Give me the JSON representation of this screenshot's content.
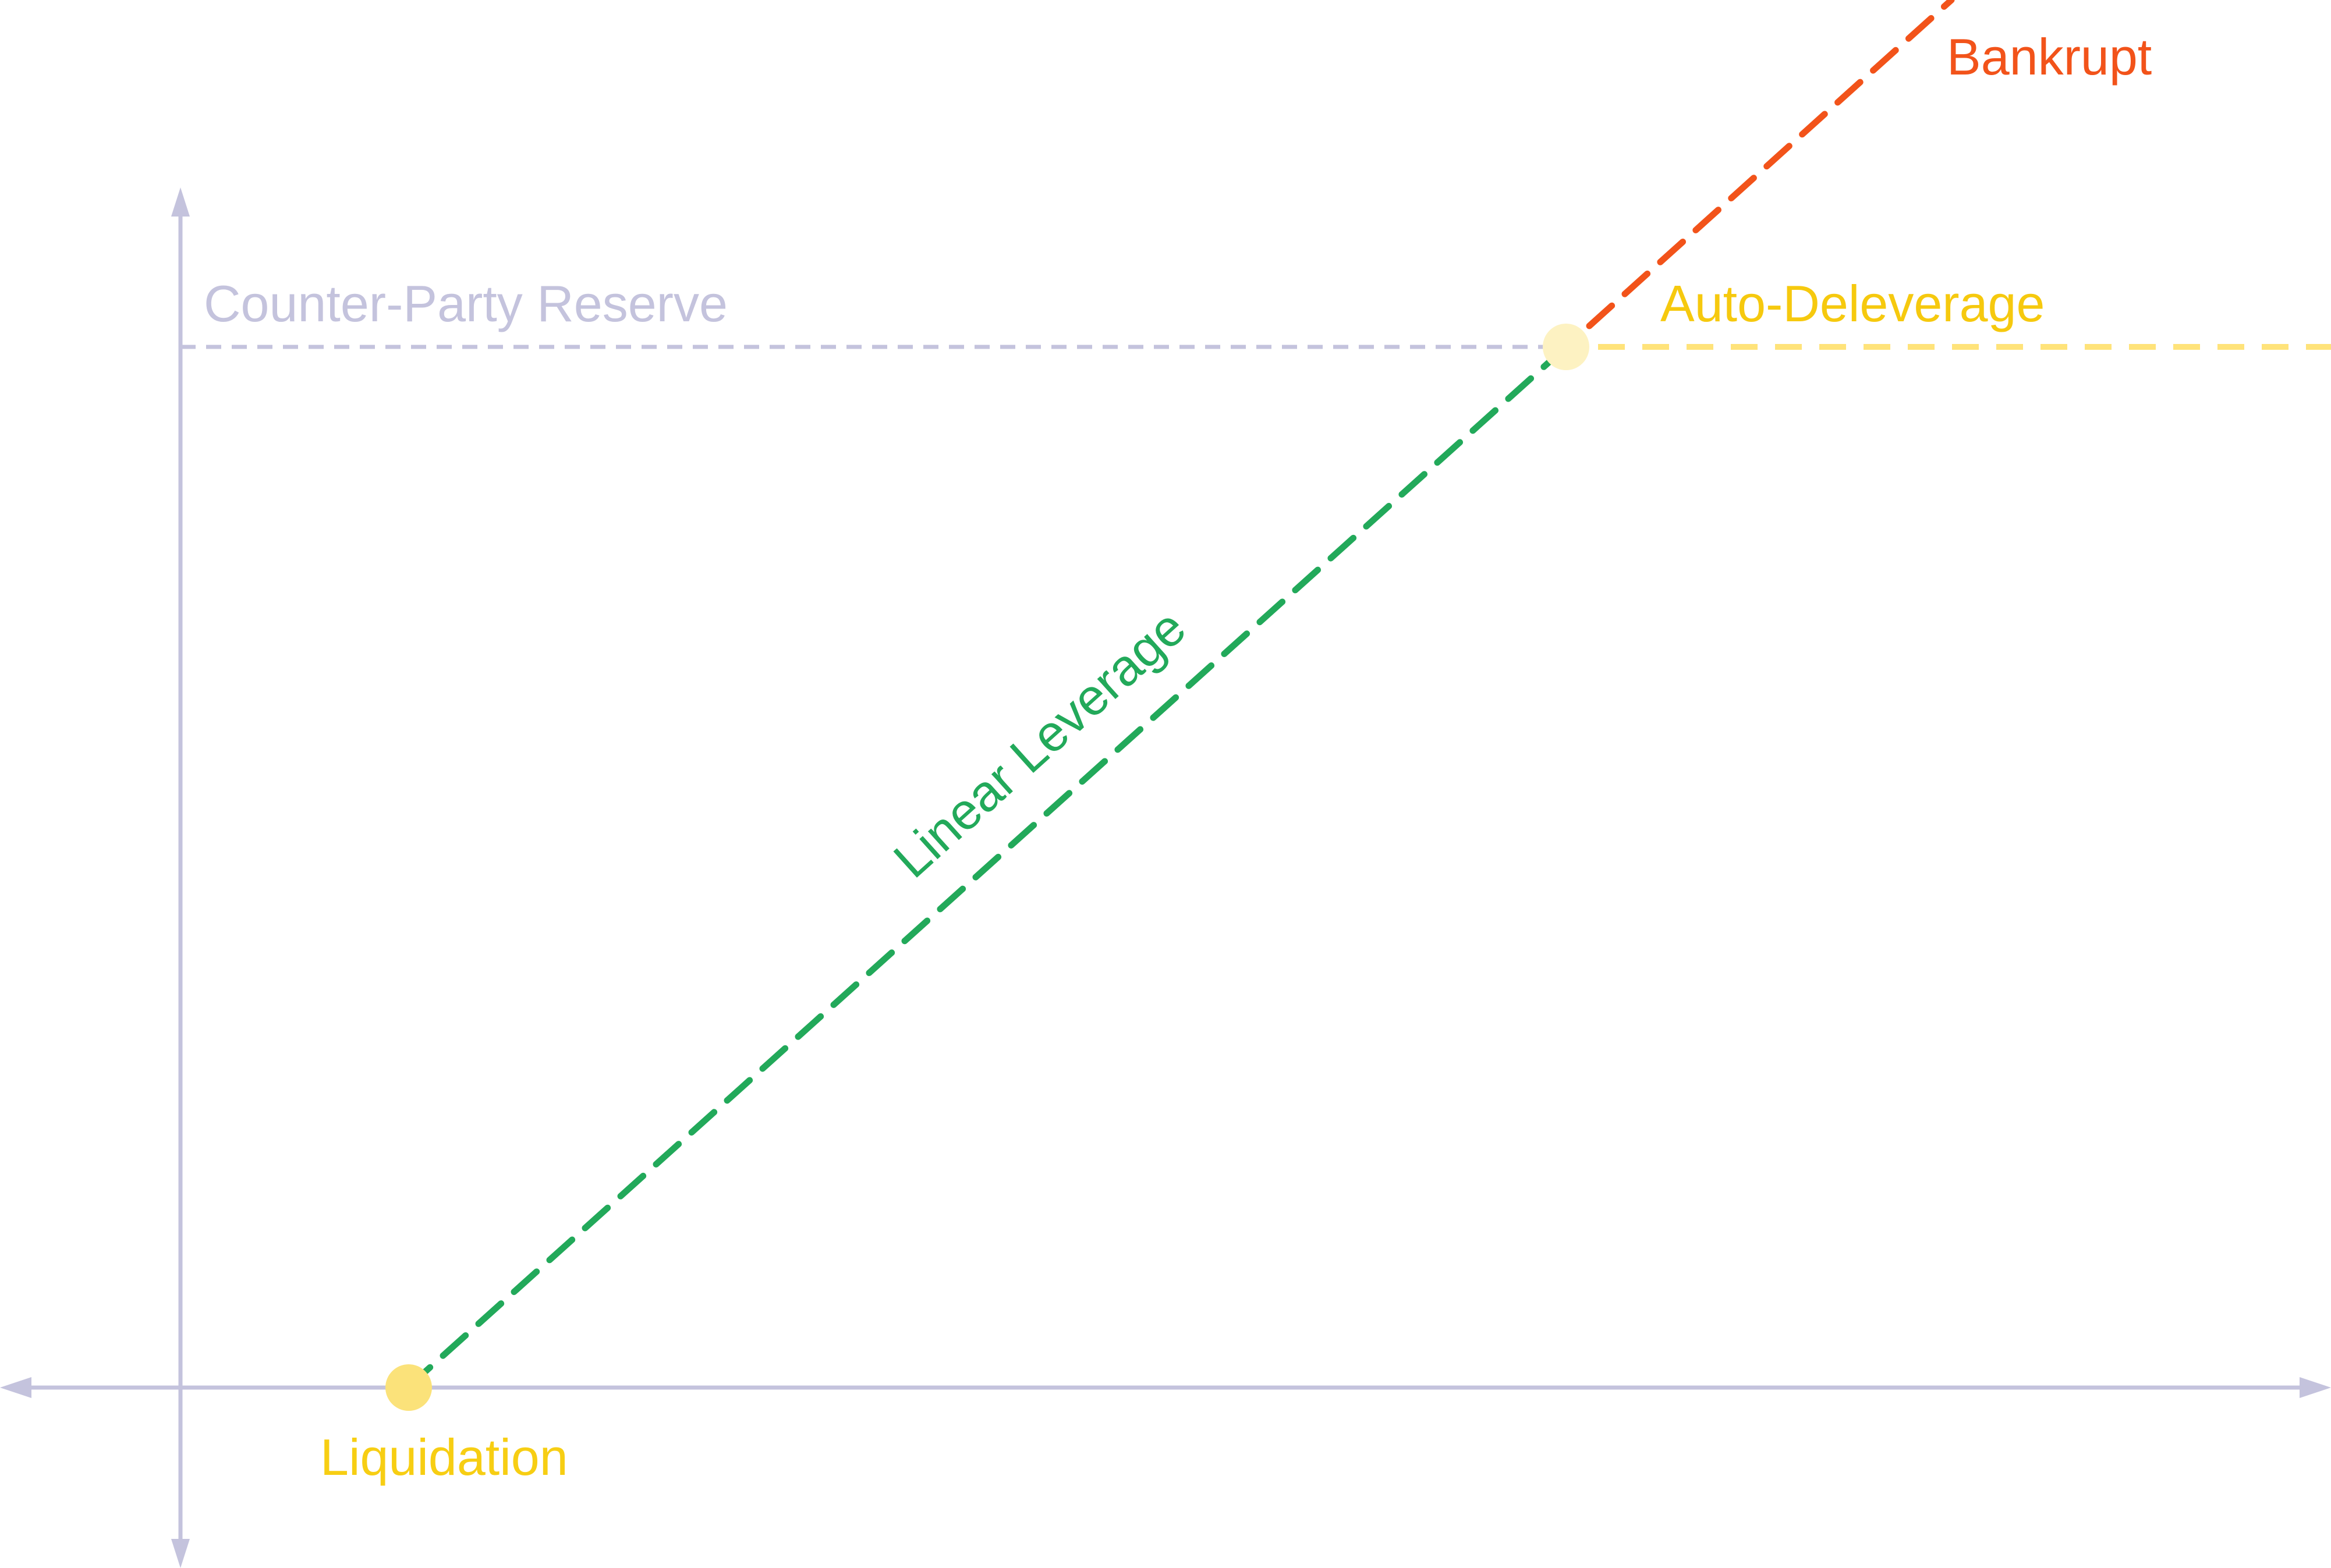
{
  "colors": {
    "axis": "#C4C3DD",
    "reserve": "#C4C3DD",
    "linear": "#22A95A",
    "bankrupt": "#F2531A",
    "auto_deleverage": "#FFE37A",
    "point": "#FBE27A",
    "point_faint": "#FDF2C2",
    "liquidation_text": "#F7CE13",
    "adl_text": "#F6C90E",
    "reserve_text": "#C4C3DD"
  },
  "labels": {
    "reserve": "Counter-Party Reserve",
    "auto_deleverage": "Auto-Deleverage",
    "bankrupt": "Bankrupt",
    "linear": "Linear Leverage",
    "liquidation": "Liquidation"
  },
  "icons": {
    "x_axis_arrows": "double-headed-arrow",
    "y_axis_arrows": "double-headed-arrow",
    "points": "circle"
  }
}
